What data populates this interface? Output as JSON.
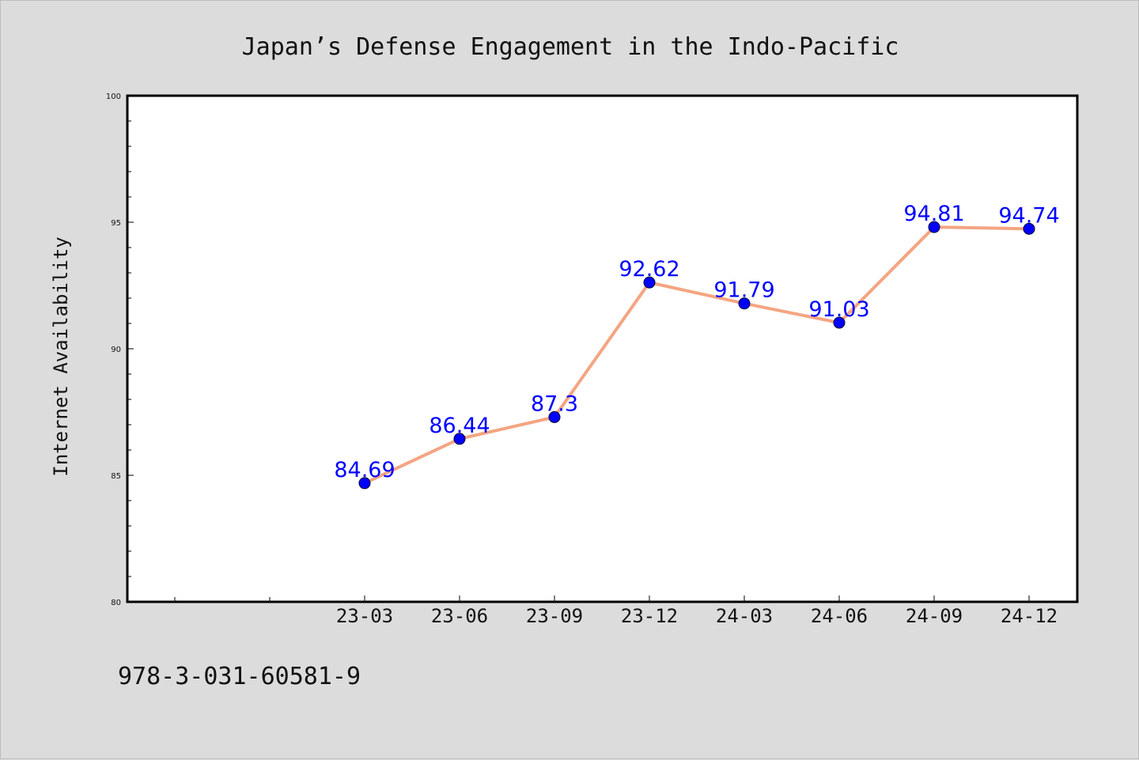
{
  "chart_data": {
    "type": "line",
    "title": "Japan’s Defense Engagement in the Indo-Pacific",
    "xlabel": "",
    "ylabel": "Internet Availability",
    "categories": [
      "23-03",
      "23-06",
      "23-09",
      "23-12",
      "24-03",
      "24-06",
      "24-09",
      "24-12"
    ],
    "series": [
      {
        "values": [
          84.69,
          86.44,
          87.3,
          92.62,
          91.79,
          91.03,
          94.81,
          94.74
        ],
        "data_labels": [
          "84.69",
          "86.44",
          "87.3",
          "92.62",
          "91.79",
          "91.03",
          "94.81",
          "94.74"
        ],
        "line_color": "#f4a582",
        "marker_color": "#0000ff"
      }
    ],
    "ylim": [
      80,
      100
    ],
    "yticks": [
      80,
      85,
      90,
      95,
      100
    ],
    "ytick_labels": [
      "80",
      "85",
      "90",
      "95",
      "100"
    ],
    "grid": false,
    "legend": "none"
  },
  "footer": {
    "isbn": "978-3-031-60581-9"
  },
  "colors": {
    "background": "#dcdcdc",
    "plot_background": "#ffffff",
    "axis": "#000000",
    "data_label": "#0000ff"
  }
}
